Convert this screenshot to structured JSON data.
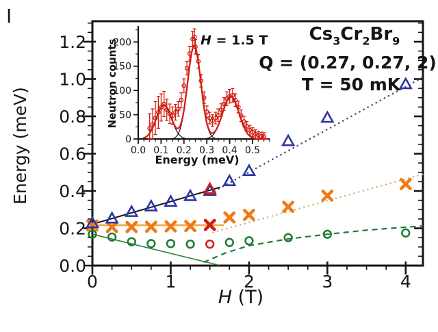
{
  "panel_label": "I",
  "figure": {
    "sample_formula": [
      {
        "t": "Cs"
      },
      {
        "t": "3",
        "sub": true
      },
      {
        "t": "Cr"
      },
      {
        "t": "2",
        "sub": true
      },
      {
        "t": "Br"
      },
      {
        "t": "9",
        "sub": true
      }
    ],
    "sample_formula_plain": "Cs3Cr2Br9",
    "q_label": "Q = (0.27, 0.27, 2)",
    "t_label": "T = 50 mK",
    "text_color": "#151515"
  },
  "chart_data": [
    {
      "type": "scatter",
      "name": "energy-vs-field",
      "xlabel": "H (T)",
      "xlabel_rich": [
        {
          "t": "H",
          "italic": true
        },
        {
          "t": " (T)"
        }
      ],
      "ylabel": "Energy (meV)",
      "xlim": [
        0,
        4.22
      ],
      "ylim": [
        0,
        1.31
      ],
      "x_major_ticks": [
        0,
        1,
        2,
        3,
        4
      ],
      "x_minor_step": 0.25,
      "y_major_ticks": [
        0.0,
        0.2,
        0.4,
        0.6,
        0.8,
        1.0,
        1.2
      ],
      "y_minor_step": 0.05,
      "series": [
        {
          "name": "middle-mode-crosses",
          "marker": "x",
          "color": "#ee7b16",
          "points": [
            [
              0,
              0.215
            ],
            [
              0.25,
              0.207
            ],
            [
              0.5,
              0.207
            ],
            [
              0.75,
              0.208
            ],
            [
              1.0,
              0.21
            ],
            [
              1.25,
              0.212
            ],
            [
              1.75,
              0.258
            ],
            [
              2.0,
              0.272
            ],
            [
              2.5,
              0.315
            ],
            [
              3.0,
              0.375
            ],
            [
              4.0,
              0.437
            ]
          ]
        },
        {
          "name": "upper-mode-triangles",
          "marker": "triangle",
          "color": "#2a35a5",
          "points": [
            [
              0,
              0.225
            ],
            [
              0.25,
              0.25
            ],
            [
              0.5,
              0.285
            ],
            [
              0.75,
              0.315
            ],
            [
              1.0,
              0.34
            ],
            [
              1.25,
              0.37
            ],
            [
              1.5,
              0.398
            ],
            [
              1.75,
              0.45
            ],
            [
              2.0,
              0.505
            ],
            [
              2.5,
              0.665
            ],
            [
              3.0,
              0.79
            ],
            [
              4.0,
              0.97
            ]
          ]
        },
        {
          "name": "lower-mode-circles",
          "marker": "circle",
          "color": "#1d7a35",
          "points": [
            [
              0,
              0.168
            ],
            [
              0.25,
              0.153
            ],
            [
              0.5,
              0.128
            ],
            [
              0.75,
              0.118
            ],
            [
              1.0,
              0.118
            ],
            [
              1.25,
              0.115
            ],
            [
              1.75,
              0.124
            ],
            [
              2.0,
              0.133
            ],
            [
              2.5,
              0.15
            ],
            [
              3.0,
              0.168
            ],
            [
              4.0,
              0.175
            ]
          ]
        },
        {
          "name": "highlight-triangle-1p5T",
          "marker": "triangle",
          "color": "#d11c10",
          "points": [
            [
              1.5,
              0.408
            ]
          ]
        },
        {
          "name": "highlight-cross-1p5T",
          "marker": "x",
          "color": "#d11c10",
          "points": [
            [
              1.5,
              0.218
            ]
          ]
        },
        {
          "name": "highlight-circle-1p5T",
          "marker": "circle",
          "color": "#d11c10",
          "points": [
            [
              1.5,
              0.115
            ]
          ]
        }
      ],
      "lines": [
        {
          "name": "upper-fit-solid",
          "style": "solid",
          "color": "#1a1a1a",
          "width": 2.0,
          "points": [
            [
              0,
              0.222
            ],
            [
              1.63,
              0.42
            ]
          ]
        },
        {
          "name": "upper-extrapolation-dotted",
          "style": "dotted",
          "color": "#4d5178",
          "width": 2.6,
          "points": [
            [
              1.56,
              0.4
            ],
            [
              4.22,
              1.01
            ]
          ]
        },
        {
          "name": "middle-flat-solid",
          "style": "solid",
          "color": "#f5a93f",
          "width": 2.6,
          "points": [
            [
              0,
              0.217
            ],
            [
              1.68,
              0.217
            ]
          ]
        },
        {
          "name": "middle-extrapolation-dotted",
          "style": "dotted",
          "color": "#d8a76d",
          "width": 2.4,
          "points": [
            [
              1.54,
              0.178
            ],
            [
              4.22,
              0.49
            ]
          ]
        },
        {
          "name": "lower-fit-solid",
          "style": "solid",
          "color": "#2e7d3c",
          "width": 1.6,
          "points": [
            [
              0,
              0.168
            ],
            [
              1.62,
              0.002
            ]
          ]
        },
        {
          "name": "lower-extrapolation-dashed",
          "style": "dashed",
          "color": "#1d7a35",
          "width": 2.2,
          "points": [
            [
              1.42,
              0.018
            ],
            [
              1.7,
              0.068
            ],
            [
              2.0,
              0.107
            ],
            [
              2.5,
              0.143
            ],
            [
              3.0,
              0.168
            ],
            [
              3.5,
              0.19
            ],
            [
              4.22,
              0.213
            ]
          ]
        }
      ]
    },
    {
      "type": "scatter-with-fit",
      "name": "neutron-scan-inset",
      "xlabel": "Energy (meV)",
      "ylabel": "Neutron counts",
      "annotation": "H = 1.5 T",
      "annotation_rich": [
        {
          "t": "H",
          "italic": true
        },
        {
          "t": " = 1.5 T"
        }
      ],
      "xlim": [
        0,
        0.575
      ],
      "ylim": [
        0,
        230
      ],
      "x_major_ticks": [
        0.0,
        0.1,
        0.2,
        0.3,
        0.4,
        0.5
      ],
      "x_minor_step": 0.025,
      "y_major_ticks": [
        0,
        50,
        100,
        150,
        200
      ],
      "y_minor_step": 25,
      "colors": {
        "data": "#d11c10",
        "component": "#1a1a1a"
      },
      "points_energy_counts_err": [
        [
          0.05,
          22,
          30
        ],
        [
          0.063,
          30,
          32
        ],
        [
          0.075,
          43,
          34
        ],
        [
          0.088,
          55,
          33
        ],
        [
          0.1,
          65,
          28
        ],
        [
          0.113,
          72,
          26
        ],
        [
          0.125,
          60,
          22
        ],
        [
          0.138,
          52,
          20
        ],
        [
          0.15,
          48,
          18
        ],
        [
          0.163,
          55,
          16
        ],
        [
          0.175,
          62,
          15
        ],
        [
          0.188,
          80,
          15
        ],
        [
          0.2,
          110,
          14
        ],
        [
          0.213,
          146,
          14
        ],
        [
          0.225,
          176,
          15
        ],
        [
          0.238,
          206,
          16
        ],
        [
          0.246,
          210,
          17
        ],
        [
          0.25,
          190,
          15
        ],
        [
          0.263,
          160,
          14
        ],
        [
          0.275,
          120,
          13
        ],
        [
          0.288,
          85,
          12
        ],
        [
          0.3,
          56,
          12
        ],
        [
          0.313,
          43,
          12
        ],
        [
          0.325,
          38,
          12
        ],
        [
          0.338,
          43,
          12
        ],
        [
          0.35,
          49,
          13
        ],
        [
          0.363,
          60,
          13
        ],
        [
          0.375,
          72,
          13
        ],
        [
          0.388,
          83,
          14
        ],
        [
          0.4,
          88,
          14
        ],
        [
          0.413,
          90,
          14
        ],
        [
          0.425,
          80,
          13
        ],
        [
          0.438,
          66,
          12
        ],
        [
          0.45,
          48,
          12
        ],
        [
          0.463,
          36,
          11
        ],
        [
          0.475,
          26,
          10
        ],
        [
          0.488,
          18,
          10
        ],
        [
          0.5,
          14,
          9
        ],
        [
          0.513,
          10,
          9
        ],
        [
          0.525,
          8,
          8
        ],
        [
          0.538,
          6,
          8
        ],
        [
          0.55,
          5,
          8
        ]
      ],
      "fit_components": [
        {
          "center": 0.112,
          "amplitude": 70,
          "sigma": 0.033
        },
        {
          "center": 0.245,
          "amplitude": 192,
          "sigma": 0.029
        },
        {
          "center": 0.405,
          "amplitude": 88,
          "sigma": 0.036
        }
      ]
    }
  ]
}
